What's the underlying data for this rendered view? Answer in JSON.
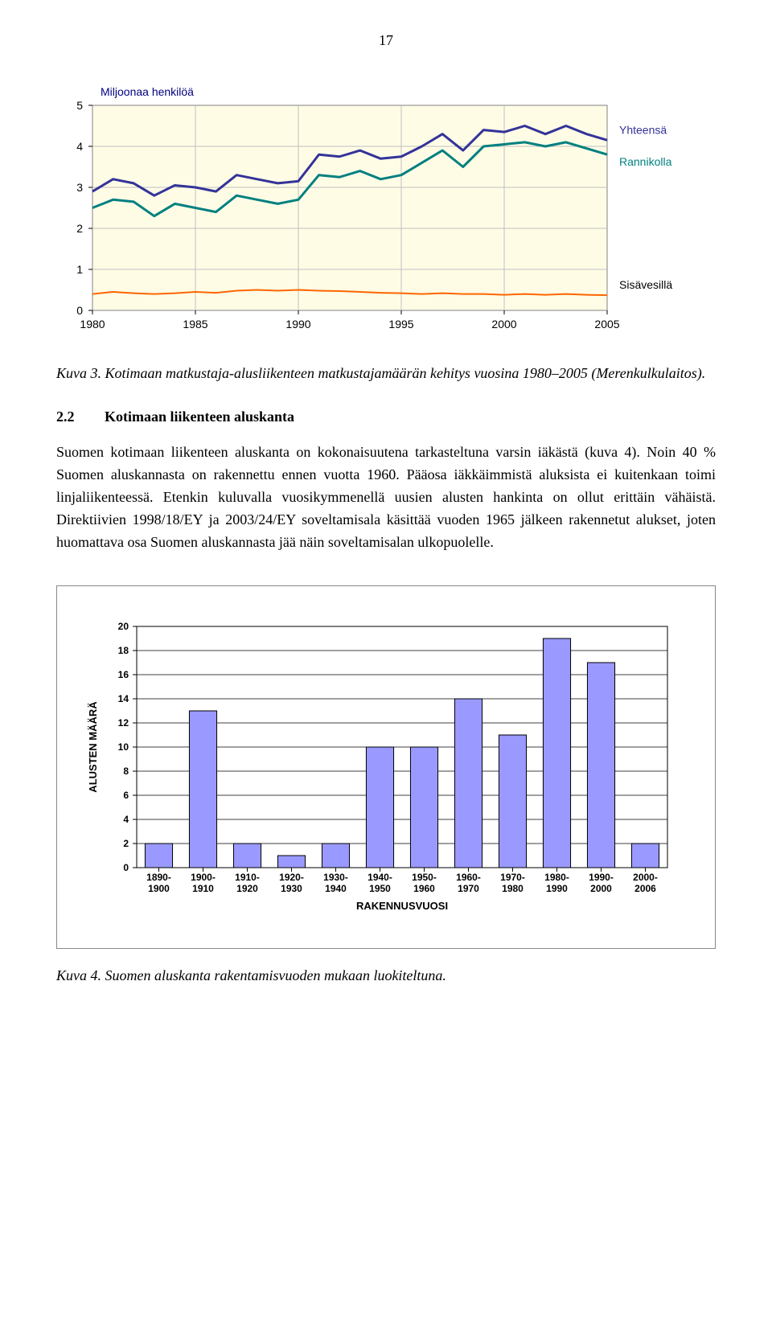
{
  "page_number": "17",
  "line_chart": {
    "type": "line",
    "title": "Miljoonaa henkilöä",
    "title_color": "#000080",
    "title_fontsize": 14,
    "background_color": "#fffce6",
    "plot_border_color": "#808080",
    "grid_color": "#c0c0c0",
    "x_labels": [
      "1980",
      "1985",
      "1990",
      "1995",
      "2000",
      "2005"
    ],
    "x_ticks": [
      1980,
      1985,
      1990,
      1995,
      2000,
      2005
    ],
    "y_ticks": [
      0,
      1,
      2,
      3,
      4,
      5
    ],
    "ylim": [
      0,
      5
    ],
    "xlim": [
      1980,
      2005
    ],
    "axis_fontsize": 14,
    "axis_fontfamily": "Verdana",
    "series": [
      {
        "name": "Yhteensä",
        "label": "Yhteensä",
        "color": "#333399",
        "line_width": 3,
        "data": [
          [
            1980,
            2.9
          ],
          [
            1981,
            3.2
          ],
          [
            1982,
            3.1
          ],
          [
            1983,
            2.8
          ],
          [
            1984,
            3.05
          ],
          [
            1985,
            3.0
          ],
          [
            1986,
            2.9
          ],
          [
            1987,
            3.3
          ],
          [
            1988,
            3.2
          ],
          [
            1989,
            3.1
          ],
          [
            1990,
            3.15
          ],
          [
            1991,
            3.8
          ],
          [
            1992,
            3.75
          ],
          [
            1993,
            3.9
          ],
          [
            1994,
            3.7
          ],
          [
            1995,
            3.75
          ],
          [
            1996,
            4.0
          ],
          [
            1997,
            4.3
          ],
          [
            1998,
            3.9
          ],
          [
            1999,
            4.4
          ],
          [
            2000,
            4.35
          ],
          [
            2001,
            4.5
          ],
          [
            2002,
            4.3
          ],
          [
            2003,
            4.5
          ],
          [
            2004,
            4.3
          ],
          [
            2005,
            4.15
          ]
        ]
      },
      {
        "name": "Rannikolla",
        "label": "Rannikolla",
        "color": "#008080",
        "line_width": 3,
        "data": [
          [
            1980,
            2.5
          ],
          [
            1981,
            2.7
          ],
          [
            1982,
            2.65
          ],
          [
            1983,
            2.3
          ],
          [
            1984,
            2.6
          ],
          [
            1985,
            2.5
          ],
          [
            1986,
            2.4
          ],
          [
            1987,
            2.8
          ],
          [
            1988,
            2.7
          ],
          [
            1989,
            2.6
          ],
          [
            1990,
            2.7
          ],
          [
            1991,
            3.3
          ],
          [
            1992,
            3.25
          ],
          [
            1993,
            3.4
          ],
          [
            1994,
            3.2
          ],
          [
            1995,
            3.3
          ],
          [
            1996,
            3.6
          ],
          [
            1997,
            3.9
          ],
          [
            1998,
            3.5
          ],
          [
            1999,
            4.0
          ],
          [
            2000,
            4.05
          ],
          [
            2001,
            4.1
          ],
          [
            2002,
            4.0
          ],
          [
            2003,
            4.1
          ],
          [
            2004,
            3.95
          ],
          [
            2005,
            3.8
          ]
        ]
      },
      {
        "name": "Sisävesillä",
        "label": "Sisävesillä",
        "color": "#ff6600",
        "line_width": 2,
        "data": [
          [
            1980,
            0.4
          ],
          [
            1981,
            0.45
          ],
          [
            1982,
            0.42
          ],
          [
            1983,
            0.4
          ],
          [
            1984,
            0.42
          ],
          [
            1985,
            0.45
          ],
          [
            1986,
            0.43
          ],
          [
            1987,
            0.48
          ],
          [
            1988,
            0.5
          ],
          [
            1989,
            0.48
          ],
          [
            1990,
            0.5
          ],
          [
            1991,
            0.48
          ],
          [
            1992,
            0.47
          ],
          [
            1993,
            0.45
          ],
          [
            1994,
            0.43
          ],
          [
            1995,
            0.42
          ],
          [
            1996,
            0.4
          ],
          [
            1997,
            0.42
          ],
          [
            1998,
            0.4
          ],
          [
            1999,
            0.4
          ],
          [
            2000,
            0.38
          ],
          [
            2001,
            0.4
          ],
          [
            2002,
            0.38
          ],
          [
            2003,
            0.4
          ],
          [
            2004,
            0.38
          ],
          [
            2005,
            0.37
          ]
        ]
      }
    ],
    "legend_labels": {
      "yhteensa": "Yhteensä",
      "rannikolla": "Rannikolla",
      "sisavesilla": "Sisävesillä"
    }
  },
  "caption1_prefix": "Kuva 3. ",
  "caption1_body": "Kotimaan matkustaja-alusliikenteen matkustajamäärän kehitys vuosina 1980–2005 (Merenkulkulaitos).",
  "section": {
    "number": "2.2",
    "title": "Kotimaan liikenteen aluskanta"
  },
  "body_paragraph": "Suomen kotimaan liikenteen aluskanta on kokonaisuutena tarkasteltuna varsin iäkästä (kuva 4). Noin 40 % Suomen aluskannasta on rakennettu ennen vuotta 1960. Pääosa iäkkäimmistä aluksista ei kuitenkaan toimi linjaliikenteessä. Etenkin kuluvalla vuosi­kymmenellä uusien alusten hankinta on ollut erittäin vähäistä. Direktiivien 1998/18/EY ja 2003/24/EY soveltamisala käsittää vuoden 1965 jälkeen rakennetut alukset, joten huomattava osa Suomen aluskannasta jää näin soveltamisalan ulkopuolelle.",
  "bar_chart": {
    "type": "bar",
    "ylabel": "ALUSTEN MÄÄRÄ",
    "xlabel": "RAKENNUSVUOSI",
    "background_color": "#ffffff",
    "grid_color": "#000000",
    "bar_fill": "#9999ff",
    "bar_stroke": "#000000",
    "y_ticks": [
      0,
      2,
      4,
      6,
      8,
      10,
      12,
      14,
      16,
      18,
      20
    ],
    "ylim": [
      0,
      20
    ],
    "label_fontsize": 12,
    "axis_fontweight": "bold",
    "categories": [
      "1890-1900",
      "1900-1910",
      "1910-1920",
      "1920-1930",
      "1930-1940",
      "1940-1950",
      "1950-1960",
      "1960-1970",
      "1970-1980",
      "1980-1990",
      "1990-2000",
      "2000-2006"
    ],
    "values": [
      2,
      13,
      2,
      1,
      2,
      10,
      10,
      14,
      11,
      19,
      17,
      2
    ]
  },
  "caption2_prefix": "Kuva 4. ",
  "caption2_body": "Suomen aluskanta rakentamisvuoden mukaan luokiteltuna."
}
